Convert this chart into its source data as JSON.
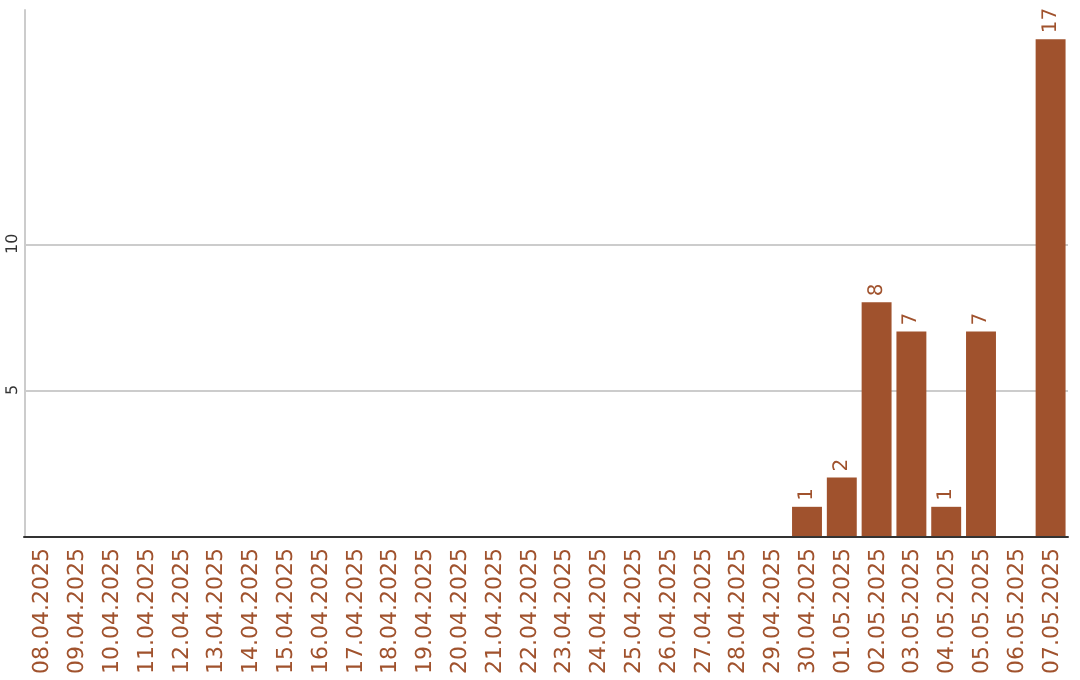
{
  "chart_data": {
    "type": "bar",
    "categories": [
      "08.04.2025",
      "09.04.2025",
      "10.04.2025",
      "11.04.2025",
      "12.04.2025",
      "13.04.2025",
      "14.04.2025",
      "15.04.2025",
      "16.04.2025",
      "17.04.2025",
      "18.04.2025",
      "19.04.2025",
      "20.04.2025",
      "21.04.2025",
      "22.04.2025",
      "23.04.2025",
      "24.04.2025",
      "25.04.2025",
      "26.04.2025",
      "27.04.2025",
      "28.04.2025",
      "29.04.2025",
      "30.04.2025",
      "01.05.2025",
      "02.05.2025",
      "03.05.2025",
      "04.05.2025",
      "05.05.2025",
      "06.05.2025",
      "07.05.2025"
    ],
    "values": [
      0,
      0,
      0,
      0,
      0,
      0,
      0,
      0,
      0,
      0,
      0,
      0,
      0,
      0,
      0,
      0,
      0,
      0,
      0,
      0,
      0,
      0,
      1,
      2,
      8,
      7,
      1,
      7,
      0,
      17
    ],
    "value_labels": [
      null,
      null,
      null,
      null,
      null,
      null,
      null,
      null,
      null,
      null,
      null,
      null,
      null,
      null,
      null,
      null,
      null,
      null,
      null,
      null,
      null,
      null,
      "1",
      "2",
      "8",
      "7",
      "1",
      "7",
      null,
      "17"
    ],
    "color": "#a0522d",
    "ylim": [
      0,
      18
    ],
    "yticks": [
      5,
      10
    ],
    "grid": "y"
  }
}
